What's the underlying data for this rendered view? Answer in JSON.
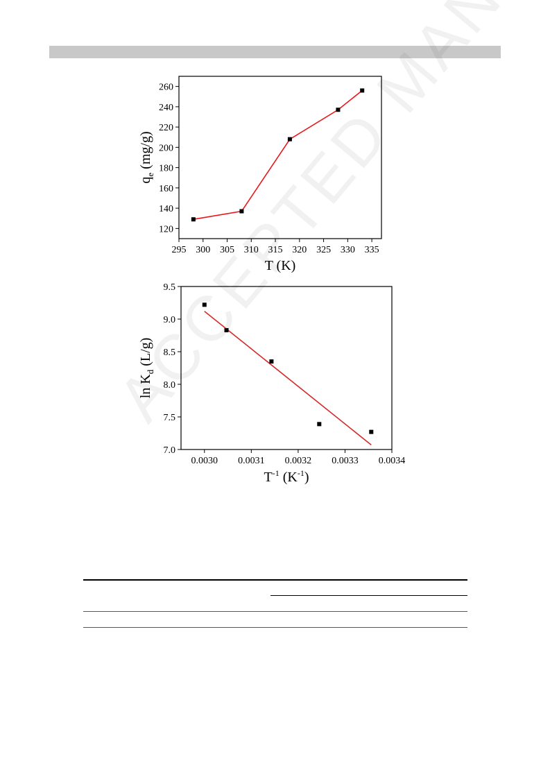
{
  "watermark": {
    "text": "ACCEPTED MANUSCRIPT"
  },
  "chart_data": [
    {
      "type": "line",
      "xlabel": "T (K)",
      "ylabel_main": "q",
      "ylabel_sub": "e",
      "ylabel_tail": " (mg/g)",
      "x": [
        298,
        308,
        318,
        328,
        333
      ],
      "y": [
        129,
        137,
        208,
        237,
        256
      ],
      "xlim": [
        295,
        337
      ],
      "ylim": [
        110,
        270
      ],
      "xticks": [
        295,
        300,
        305,
        310,
        315,
        320,
        325,
        330,
        335
      ],
      "yticks": [
        120,
        140,
        160,
        180,
        200,
        220,
        240,
        260
      ],
      "marker_color": "#000000",
      "line_color": "#e8161b",
      "grid": false
    },
    {
      "type": "scatter",
      "xlabel_main": "T",
      "xlabel_sup": "-1",
      "xlabel_mid": " (K",
      "xlabel_sup2": "-1",
      "xlabel_tail": ")",
      "ylabel_main": "ln K",
      "ylabel_sub": "d",
      "ylabel_tail": " (L/g)",
      "x": [
        0.003,
        0.003047,
        0.003143,
        0.003245,
        0.003356
      ],
      "y": [
        9.22,
        8.83,
        8.35,
        7.39,
        7.27
      ],
      "fit_line": {
        "x": [
          0.003,
          0.003356
        ],
        "y": [
          9.12,
          7.07
        ]
      },
      "xlim": [
        0.00295,
        0.0034
      ],
      "ylim": [
        7.0,
        9.5
      ],
      "xticks": [
        "0.0030",
        "0.0031",
        "0.0032",
        "0.0033",
        "0.0034"
      ],
      "xtick_values": [
        0.003,
        0.0031,
        0.0032,
        0.0033,
        0.0034
      ],
      "yticks": [
        "7.0",
        "7.5",
        "8.0",
        "8.5",
        "9.0",
        "9.5"
      ],
      "ytick_values": [
        7.0,
        7.5,
        8.0,
        8.5,
        9.0,
        9.5
      ],
      "marker_color": "#000000",
      "line_color": "#d42a2a",
      "grid": false
    }
  ]
}
